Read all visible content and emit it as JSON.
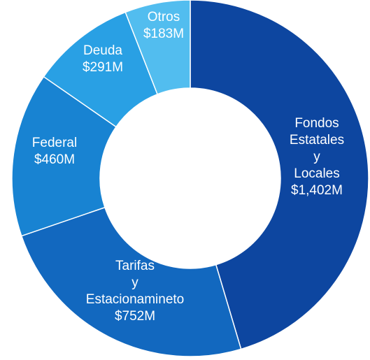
{
  "chart_data": {
    "type": "pie",
    "variant": "donut",
    "unit": "$M",
    "slices": [
      {
        "key": "fondos",
        "label_lines": [
          "Fondos",
          "Estatales",
          "y",
          "Locales",
          "$1,402M"
        ],
        "value": 1402,
        "color": "#0d46a0"
      },
      {
        "key": "tarifas",
        "label_lines": [
          "Tarifas",
          "y",
          "Estacionamineto",
          "$752M"
        ],
        "value": 752,
        "color": "#1268bf"
      },
      {
        "key": "federal",
        "label_lines": [
          "Federal",
          "$460M"
        ],
        "value": 460,
        "color": "#1883d2"
      },
      {
        "key": "deuda",
        "label_lines": [
          "Deuda",
          "$291M"
        ],
        "value": 291,
        "color": "#29a0e4"
      },
      {
        "key": "otros",
        "label_lines": [
          "Otros",
          "$183M"
        ],
        "value": 183,
        "color": "#52bdef"
      }
    ]
  }
}
